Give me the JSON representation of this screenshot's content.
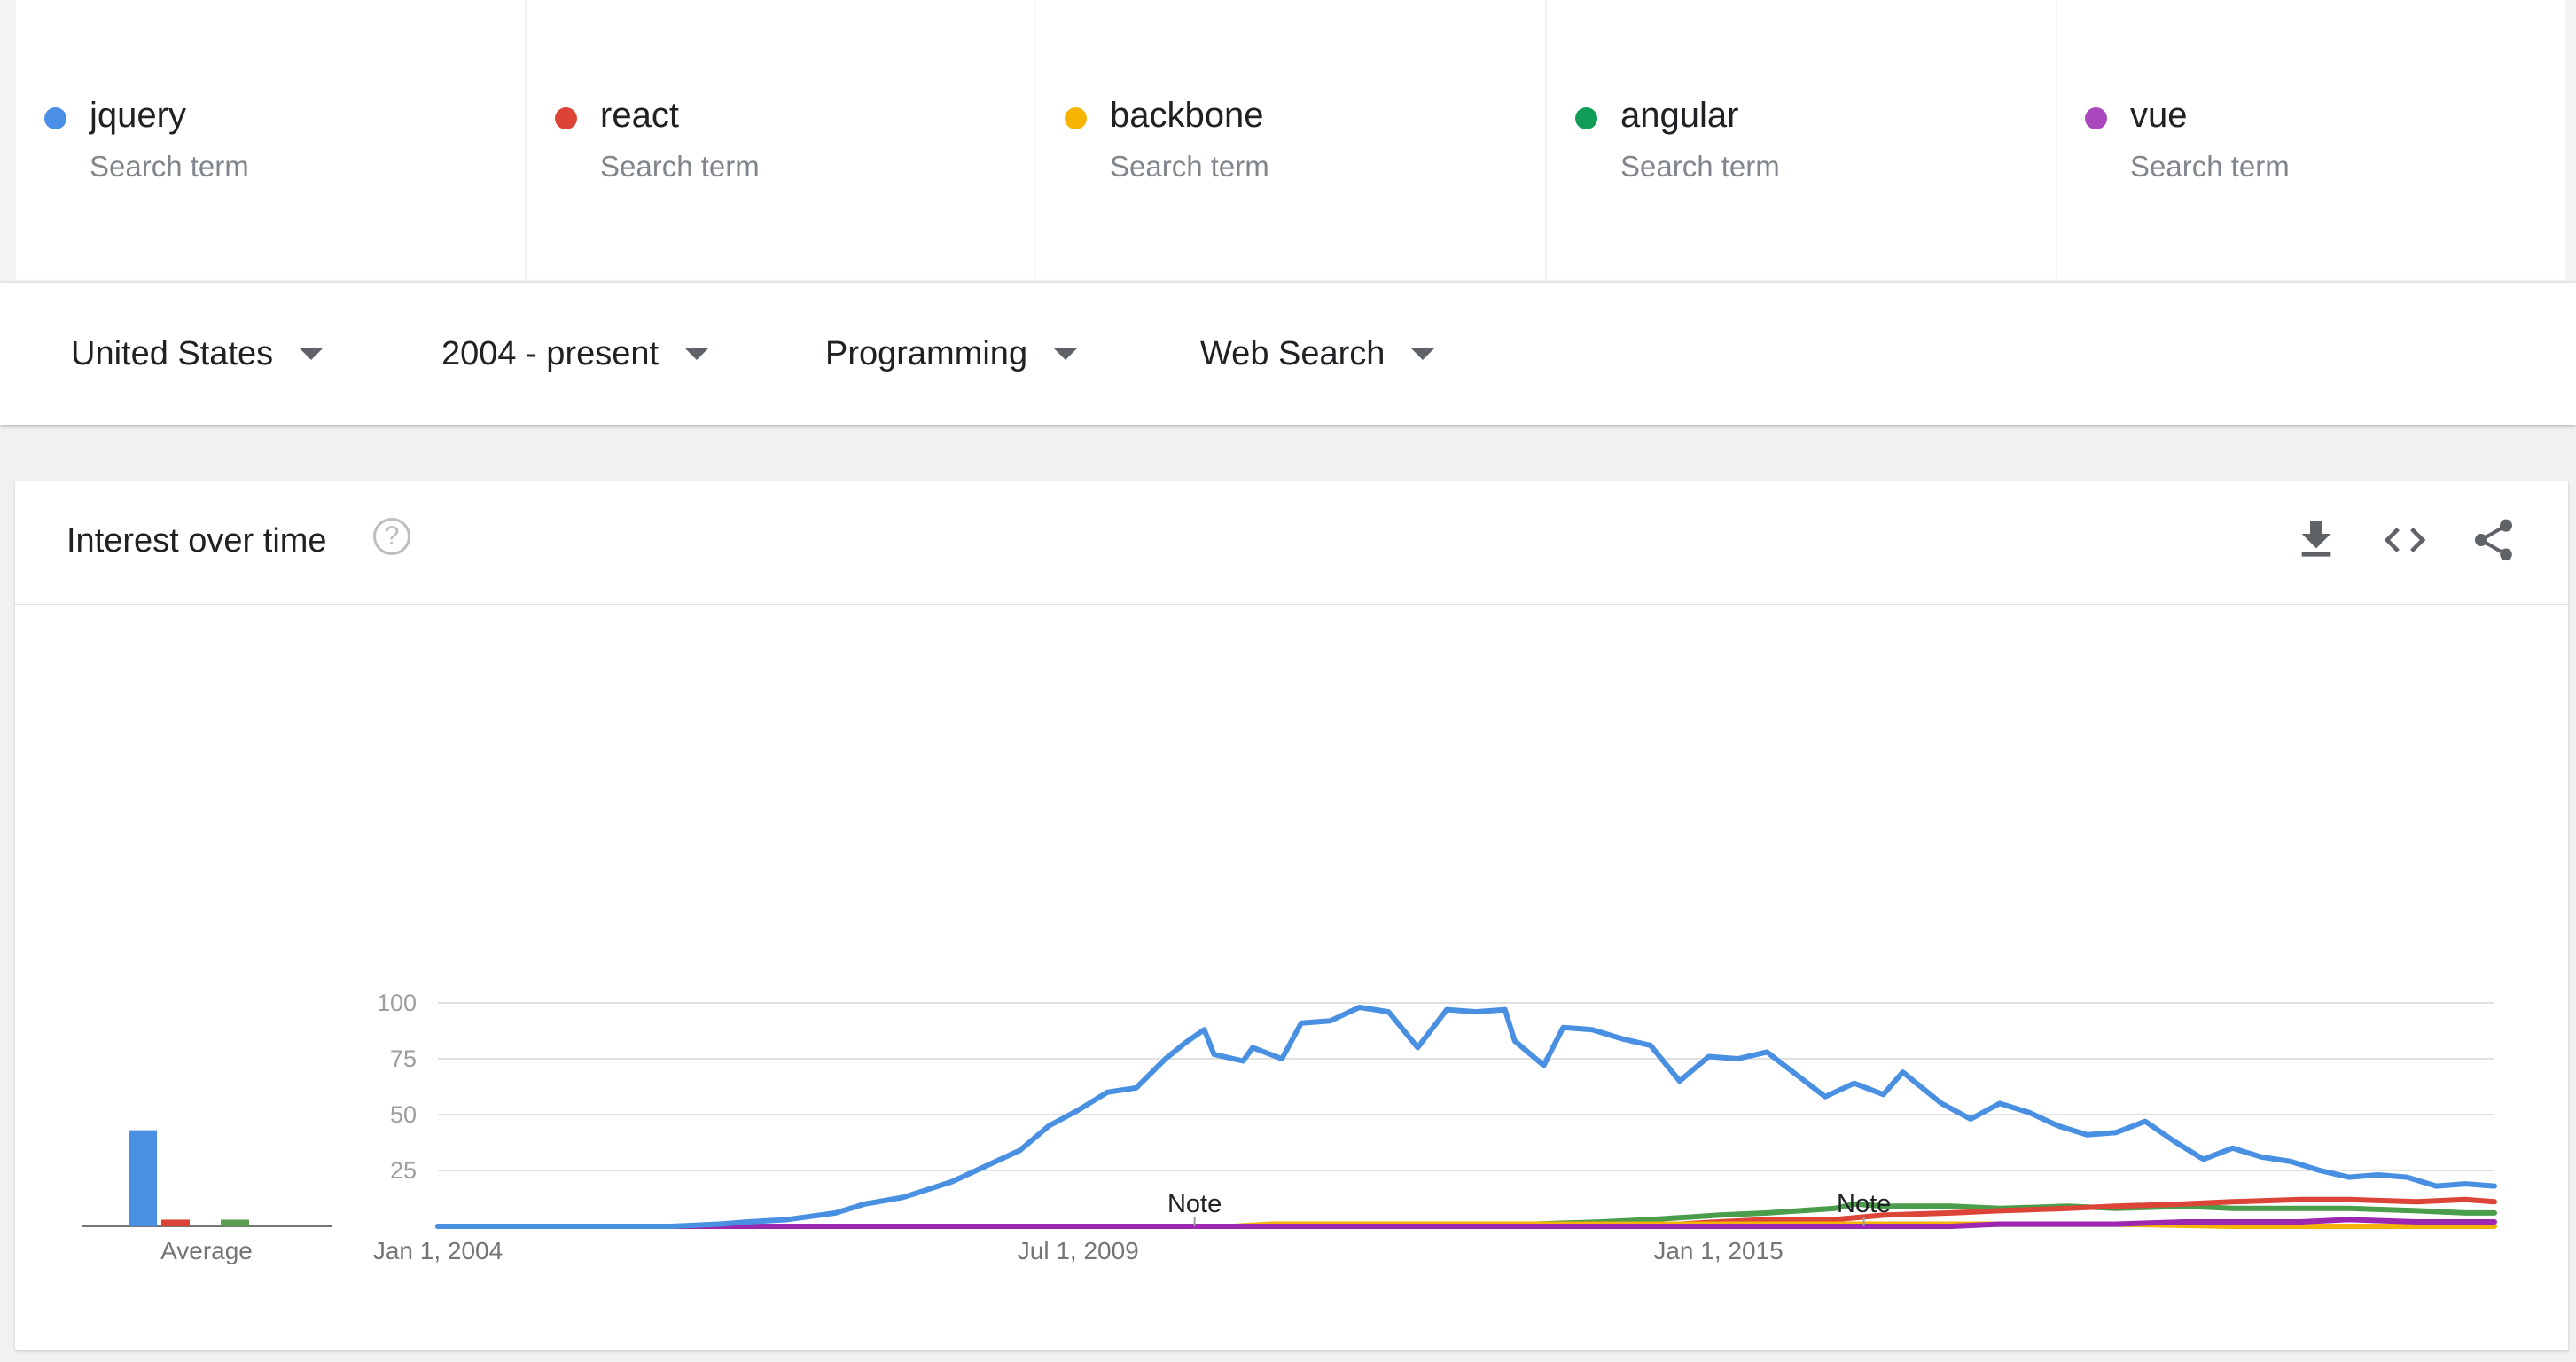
{
  "search_terms": [
    {
      "name": "jquery",
      "sub": "Search term",
      "color": "#4a8ee8"
    },
    {
      "name": "react",
      "sub": "Search term",
      "color": "#db4437"
    },
    {
      "name": "backbone",
      "sub": "Search term",
      "color": "#f4b400"
    },
    {
      "name": "angular",
      "sub": "Search term",
      "color": "#0f9d58"
    },
    {
      "name": "vue",
      "sub": "Search term",
      "color": "#ab47bc"
    }
  ],
  "filters": {
    "region": "United States",
    "time": "2004 - present",
    "category": "Programming",
    "search_type": "Web Search"
  },
  "card": {
    "title": "Interest over time",
    "help_icon": "help-circle-icon",
    "actions": [
      "download-icon",
      "embed-code-icon",
      "share-icon"
    ]
  },
  "chart_data": [
    {
      "type": "bar",
      "title": "",
      "xlabel": "Average",
      "ylabel": "",
      "categories": [
        "jquery",
        "react",
        "backbone",
        "angular",
        "vue"
      ],
      "values": [
        43,
        3,
        0,
        3,
        0
      ],
      "ylim": [
        0,
        100
      ],
      "colors": [
        "#4a90e2",
        "#db4437",
        "#f4b400",
        "#5a9e4f",
        "#9c27b0"
      ]
    },
    {
      "type": "line",
      "title": "",
      "xlabel": "",
      "ylabel": "",
      "x_ticks": [
        "Jan 1, 2004",
        "Jul 1, 2009",
        "Jan 1, 2015"
      ],
      "y_ticks": [
        25,
        50,
        75,
        100
      ],
      "ylim": [
        0,
        100
      ],
      "grid": true,
      "annotations": [
        {
          "text": "Note",
          "x": "2010-07"
        },
        {
          "text": "Note",
          "x": "2016-04"
        }
      ],
      "series": [
        {
          "name": "jquery",
          "color": "#4a90e2",
          "points": [
            [
              "2004-01",
              0
            ],
            [
              "2005-01",
              0
            ],
            [
              "2006-01",
              0
            ],
            [
              "2006-06",
              1
            ],
            [
              "2006-09",
              2
            ],
            [
              "2007-01",
              3
            ],
            [
              "2007-06",
              6
            ],
            [
              "2007-09",
              10
            ],
            [
              "2008-01",
              13
            ],
            [
              "2008-06",
              20
            ],
            [
              "2008-09",
              26
            ],
            [
              "2009-01",
              34
            ],
            [
              "2009-04",
              45
            ],
            [
              "2009-07",
              52
            ],
            [
              "2009-10",
              60
            ],
            [
              "2010-01",
              62
            ],
            [
              "2010-04",
              75
            ],
            [
              "2010-06",
              82
            ],
            [
              "2010-08",
              88
            ],
            [
              "2010-09",
              77
            ],
            [
              "2010-12",
              74
            ],
            [
              "2011-01",
              80
            ],
            [
              "2011-04",
              75
            ],
            [
              "2011-06",
              91
            ],
            [
              "2011-09",
              92
            ],
            [
              "2011-12",
              98
            ],
            [
              "2012-03",
              96
            ],
            [
              "2012-06",
              80
            ],
            [
              "2012-09",
              97
            ],
            [
              "2012-12",
              96
            ],
            [
              "2013-03",
              97
            ],
            [
              "2013-04",
              83
            ],
            [
              "2013-07",
              72
            ],
            [
              "2013-09",
              89
            ],
            [
              "2013-12",
              88
            ],
            [
              "2014-03",
              84
            ],
            [
              "2014-06",
              81
            ],
            [
              "2014-09",
              65
            ],
            [
              "2014-12",
              76
            ],
            [
              "2015-03",
              75
            ],
            [
              "2015-06",
              78
            ],
            [
              "2015-09",
              68
            ],
            [
              "2015-12",
              58
            ],
            [
              "2016-03",
              64
            ],
            [
              "2016-06",
              59
            ],
            [
              "2016-08",
              69
            ],
            [
              "2016-12",
              55
            ],
            [
              "2017-03",
              48
            ],
            [
              "2017-06",
              55
            ],
            [
              "2017-09",
              51
            ],
            [
              "2017-12",
              45
            ],
            [
              "2018-03",
              41
            ],
            [
              "2018-06",
              42
            ],
            [
              "2018-09",
              47
            ],
            [
              "2018-12",
              38
            ],
            [
              "2019-03",
              30
            ],
            [
              "2019-06",
              35
            ],
            [
              "2019-09",
              31
            ],
            [
              "2019-12",
              29
            ],
            [
              "2020-03",
              25
            ],
            [
              "2020-06",
              22
            ],
            [
              "2020-09",
              23
            ],
            [
              "2020-12",
              22
            ],
            [
              "2021-03",
              18
            ],
            [
              "2021-06",
              19
            ],
            [
              "2021-09",
              18
            ]
          ]
        },
        {
          "name": "react",
          "color": "#db4437",
          "points": [
            [
              "2004-01",
              0
            ],
            [
              "2013-01",
              0
            ],
            [
              "2014-09",
              1
            ],
            [
              "2015-01",
              2
            ],
            [
              "2015-06",
              3
            ],
            [
              "2016-01",
              3
            ],
            [
              "2016-06",
              5
            ],
            [
              "2017-01",
              6
            ],
            [
              "2017-06",
              7
            ],
            [
              "2018-01",
              8
            ],
            [
              "2018-06",
              9
            ],
            [
              "2019-01",
              10
            ],
            [
              "2019-06",
              11
            ],
            [
              "2020-01",
              12
            ],
            [
              "2020-06",
              12
            ],
            [
              "2021-01",
              11
            ],
            [
              "2021-06",
              12
            ],
            [
              "2021-09",
              11
            ]
          ]
        },
        {
          "name": "backbone",
          "color": "#f4b400",
          "points": [
            [
              "2004-01",
              0
            ],
            [
              "2010-11",
              0
            ],
            [
              "2011-03",
              1
            ],
            [
              "2012-06",
              1
            ],
            [
              "2013-06",
              1
            ],
            [
              "2014-06",
              1
            ],
            [
              "2016-06",
              1
            ],
            [
              "2017-06",
              1
            ],
            [
              "2018-06",
              1
            ],
            [
              "2019-06",
              0
            ],
            [
              "2021-09",
              0
            ]
          ]
        },
        {
          "name": "angular",
          "color": "#4a9d4a",
          "points": [
            [
              "2004-01",
              0
            ],
            [
              "2012-06",
              0
            ],
            [
              "2013-06",
              1
            ],
            [
              "2014-01",
              2
            ],
            [
              "2014-06",
              3
            ],
            [
              "2015-01",
              5
            ],
            [
              "2015-06",
              6
            ],
            [
              "2016-01",
              8
            ],
            [
              "2016-03",
              10
            ],
            [
              "2016-06",
              9
            ],
            [
              "2017-01",
              9
            ],
            [
              "2017-06",
              8
            ],
            [
              "2018-01",
              9
            ],
            [
              "2018-06",
              8
            ],
            [
              "2019-01",
              9
            ],
            [
              "2019-06",
              8
            ],
            [
              "2020-01",
              8
            ],
            [
              "2020-06",
              8
            ],
            [
              "2021-01",
              7
            ],
            [
              "2021-06",
              6
            ],
            [
              "2021-09",
              6
            ]
          ]
        },
        {
          "name": "vue",
          "color": "#9c27b0",
          "points": [
            [
              "2004-01",
              0
            ],
            [
              "2017-01",
              0
            ],
            [
              "2017-06",
              1
            ],
            [
              "2018-01",
              1
            ],
            [
              "2018-06",
              1
            ],
            [
              "2019-01",
              2
            ],
            [
              "2019-06",
              2
            ],
            [
              "2020-01",
              2
            ],
            [
              "2020-06",
              3
            ],
            [
              "2021-01",
              2
            ],
            [
              "2021-06",
              2
            ],
            [
              "2021-09",
              2
            ]
          ]
        }
      ]
    }
  ]
}
